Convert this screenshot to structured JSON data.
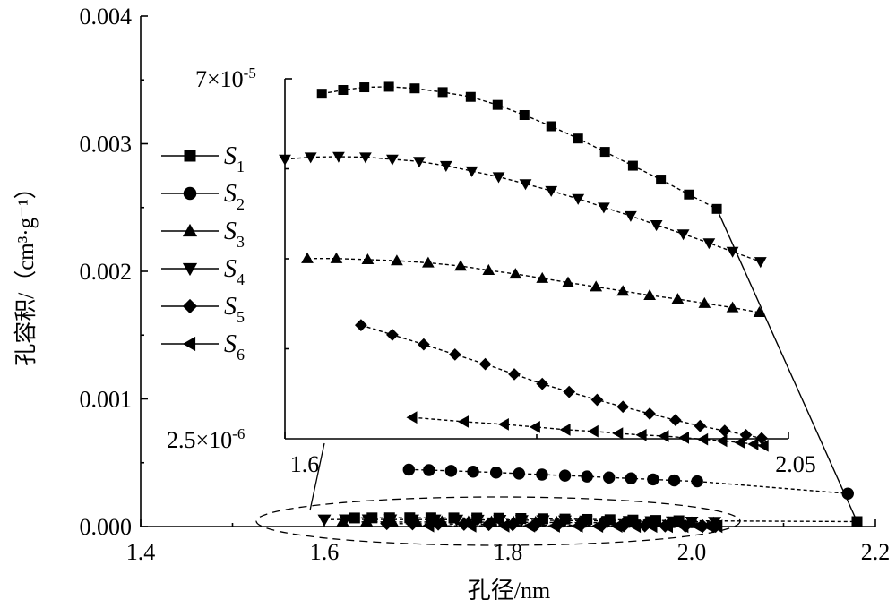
{
  "chart_data": {
    "type": "line",
    "xlabel": "孔径/nm",
    "ylabel": "孔容积/（cm³·g⁻¹）",
    "xlim": [
      1.4,
      2.2
    ],
    "ylim": [
      0,
      0.004
    ],
    "x_ticks": [
      "1.4",
      "1.6",
      "1.8",
      "2.0",
      "2.2"
    ],
    "y_ticks": [
      "0.000",
      "0.001",
      "0.002",
      "0.003",
      "0.004"
    ],
    "legend_position": "left",
    "series": [
      {
        "name": "S1",
        "name_base": "S",
        "name_sub": "1",
        "marker": "square",
        "x": [
          1.633,
          1.652,
          1.671,
          1.693,
          1.716,
          1.741,
          1.766,
          1.79,
          1.814,
          1.838,
          1.862,
          1.886,
          1.911,
          1.936,
          1.961,
          1.986,
          2.18
        ],
        "y": [
          6.72e-05,
          6.79e-05,
          6.84e-05,
          6.85e-05,
          6.82e-05,
          6.75e-05,
          6.66e-05,
          6.51e-05,
          6.32e-05,
          6.11e-05,
          5.88e-05,
          5.63e-05,
          5.37e-05,
          5.11e-05,
          4.83e-05,
          4.56e-05,
          3.86e-05
        ]
      },
      {
        "name": "S2",
        "name_base": "S",
        "name_sub": "2",
        "marker": "circle",
        "x": [
          1.692,
          1.714,
          1.738,
          1.762,
          1.787,
          1.812,
          1.837,
          1.862,
          1.886,
          1.91,
          1.934,
          1.958,
          1.981,
          2.006,
          2.17
        ],
        "y": [
          0.000446,
          0.000442,
          0.000436,
          0.00043,
          0.000423,
          0.000415,
          0.000407,
          0.000399,
          0.000392,
          0.000384,
          0.000377,
          0.000369,
          0.000361,
          0.000354,
          0.000258
        ]
      },
      {
        "name": "S3",
        "name_base": "S",
        "name_sub": "3",
        "marker": "triangle-up",
        "x": [
          1.62,
          1.646,
          1.674,
          1.7,
          1.728,
          1.757,
          1.782,
          1.806,
          1.83,
          1.853,
          1.878,
          1.902,
          1.926,
          1.951,
          1.975,
          2,
          2.024
        ],
        "y": [
          3.63e-05,
          3.63e-05,
          3.61e-05,
          3.59e-05,
          3.55e-05,
          3.49e-05,
          3.41e-05,
          3.34e-05,
          3.26e-05,
          3.18e-05,
          3.1e-05,
          3.02e-05,
          2.94e-05,
          2.87e-05,
          2.79e-05,
          2.71e-05,
          2.62e-05
        ]
      },
      {
        "name": "S4",
        "name_base": "S",
        "name_sub": "4",
        "marker": "triangle-down",
        "x": [
          1.6,
          1.623,
          1.648,
          1.672,
          1.696,
          1.72,
          1.744,
          1.767,
          1.791,
          1.815,
          1.838,
          1.862,
          1.885,
          1.909,
          1.932,
          1.956,
          1.979,
          2,
          2.025
        ],
        "y": [
          5.49e-05,
          5.53e-05,
          5.54e-05,
          5.53e-05,
          5.49e-05,
          5.45e-05,
          5.37e-05,
          5.27e-05,
          5.16e-05,
          5.03e-05,
          4.9e-05,
          4.75e-05,
          4.59e-05,
          4.43e-05,
          4.26e-05,
          4.09e-05,
          3.92e-05,
          3.76e-05,
          3.57e-05
        ]
      },
      {
        "name": "S5",
        "name_base": "S",
        "name_sub": "5",
        "marker": "diamond",
        "x": [
          1.668,
          1.696,
          1.724,
          1.752,
          1.779,
          1.805,
          1.83,
          1.854,
          1.879,
          1.902,
          1.926,
          1.949,
          1.971,
          1.993,
          2.012,
          2.026
        ],
        "y": [
          2.38e-05,
          2.2e-05,
          2.02e-05,
          1.83e-05,
          1.65e-05,
          1.46e-05,
          1.28e-05,
          1.13e-05,
          9.8e-06,
          8.5e-06,
          7.2e-06,
          6e-06,
          4.9e-06,
          4e-06,
          3.2e-06,
          2.6e-06
        ]
      },
      {
        "name": "S6",
        "name_base": "S",
        "name_sub": "6",
        "marker": "triangle-left",
        "x": [
          1.714,
          1.76,
          1.796,
          1.824,
          1.851,
          1.876,
          1.898,
          1.919,
          1.939,
          1.957,
          1.974,
          1.991,
          2.007,
          2.019,
          2.028
        ],
        "y": [
          6.5e-06,
          5.7e-06,
          5.2e-06,
          4.7e-06,
          4.2e-06,
          3.9e-06,
          3.5e-06,
          3.2e-06,
          3e-06,
          2.7e-06,
          2.4e-06,
          2.1e-06,
          1.8e-06,
          1.5e-06,
          1.2e-06
        ]
      }
    ],
    "inset": {
      "xlim": [
        1.6,
        2.05
      ],
      "ylim": [
        2.5e-06,
        7e-05
      ],
      "x_ticks": [
        "1.6",
        "2.05"
      ],
      "y_max_label": {
        "base": "7×10",
        "exp": "-5"
      },
      "y_min_label": {
        "base": "2.5×10",
        "exp": "-6"
      },
      "series": [
        "S1",
        "S3",
        "S4",
        "S5",
        "S6"
      ]
    }
  }
}
